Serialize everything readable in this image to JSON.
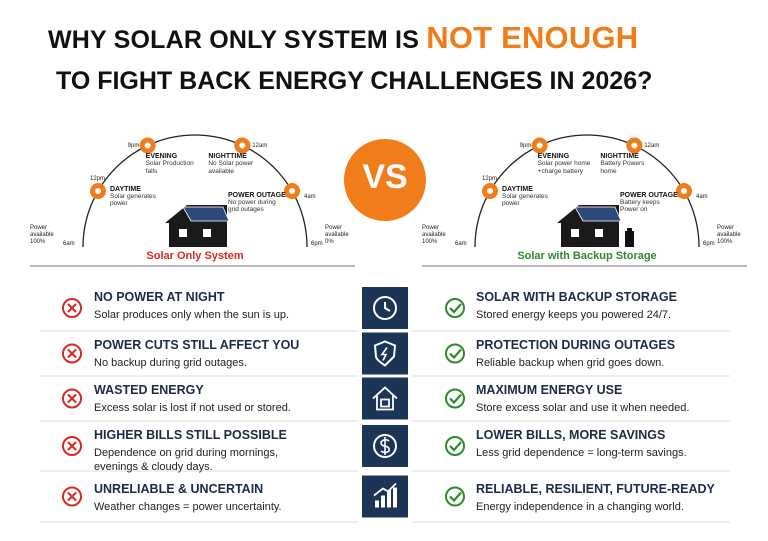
{
  "title": {
    "line1": "WHY SOLAR ONLY SYSTEM IS",
    "highlight": "NOT ENOUGH",
    "line2": "TO FIGHT BACK ENERGY CHALLENGES IN 2026?"
  },
  "left_diagram": {
    "caption": "Solar Only System",
    "times": [
      "9pm",
      "12am",
      "12pm",
      "4am",
      "6am",
      "6pm"
    ],
    "power_start": "Power\navailable\n100%",
    "power_end": "Power\navailable\n0%",
    "phases": [
      {
        "title": "EVENING",
        "text": "Solar Production\nfalls"
      },
      {
        "title": "NIGHTTIME",
        "text": "No Solar power\navailable"
      },
      {
        "title": "DAYTIME",
        "text": "Solar generates\npower"
      },
      {
        "title": "POWER OUTAGE",
        "text": "No power during\ngrid outages"
      }
    ]
  },
  "vs": "VS",
  "right_diagram": {
    "caption": "Solar with Backup Storage",
    "times": [
      "9pm",
      "12am",
      "12pm",
      "4am",
      "6am",
      "6pm"
    ],
    "power_start": "Power\navailable\n100%",
    "power_end": "Power\navailable\n100%",
    "phases": [
      {
        "title": "EVENING",
        "text": "Solar power home\n+charge battery"
      },
      {
        "title": "NIGHTTIME",
        "text": "Battery Powers\nhome"
      },
      {
        "title": "DAYTIME",
        "text": "Solar generates\npower"
      },
      {
        "title": "POWER OUTAGE",
        "text": "Battery keeps\nPower on"
      }
    ]
  },
  "rows": [
    {
      "bad_title": "NO POWER AT NIGHT",
      "bad_text": "Solar produces only when the sun is up.",
      "good_title": "SOLAR WITH BACKUP STORAGE",
      "good_text": "Stored energy keeps you powered 24/7."
    },
    {
      "bad_title": "POWER CUTS STILL AFFECT YOU",
      "bad_text": "No backup during grid outages.",
      "good_title": "PROTECTION DURING OUTAGES",
      "good_text": "Reliable backup when grid goes down."
    },
    {
      "bad_title": "WASTED ENERGY",
      "bad_text": "Excess solar is lost if not used or stored.",
      "good_title": "MAXIMUM ENERGY USE",
      "good_text": "Store excess solar and use it when needed."
    },
    {
      "bad_title": "HIGHER BILLS STILL POSSIBLE",
      "bad_text": "Dependence on grid during mornings,\nevenings & cloudy days.",
      "good_title": "LOWER BILLS, MORE SAVINGS",
      "good_text": "Less grid dependence = long-term savings."
    },
    {
      "bad_title": "UNRELIABLE & UNCERTAIN",
      "bad_text": "Weather changes = power uncertainty.",
      "good_title": "RELIABLE, RESILIENT, FUTURE-READY",
      "good_text": "Energy independence in a changing world."
    }
  ]
}
